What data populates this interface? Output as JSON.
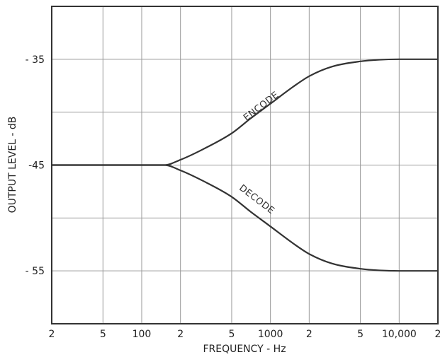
{
  "chart_data": {
    "type": "line",
    "xscale": "log",
    "xlim": [
      20,
      20000
    ],
    "ylim": [
      -60,
      -30
    ],
    "grid": true,
    "xlabel": "FREQUENCY - Hz",
    "ylabel": "OUTPUT LEVEL - dB",
    "x_ticks": [
      {
        "value": 20,
        "label": "2"
      },
      {
        "value": 50,
        "label": "5"
      },
      {
        "value": 100,
        "label": "100"
      },
      {
        "value": 200,
        "label": "2"
      },
      {
        "value": 500,
        "label": "5"
      },
      {
        "value": 1000,
        "label": "1000"
      },
      {
        "value": 2000,
        "label": "2"
      },
      {
        "value": 5000,
        "label": "5"
      },
      {
        "value": 10000,
        "label": "10,000"
      },
      {
        "value": 20000,
        "label": "2"
      }
    ],
    "y_ticks": [
      {
        "value": -35,
        "label": "- 35"
      },
      {
        "value": -45,
        "label": "-45"
      },
      {
        "value": -55,
        "label": "- 55"
      }
    ],
    "series": [
      {
        "name": "ENCODE",
        "x": [
          20,
          50,
          100,
          150,
          200,
          300,
          500,
          700,
          1000,
          1500,
          2000,
          3000,
          5000,
          7000,
          10000,
          20000
        ],
        "y": [
          -45,
          -45,
          -45,
          -45,
          -44.5,
          -43.5,
          -42,
          -40.6,
          -39.2,
          -37.6,
          -36.6,
          -35.7,
          -35.2,
          -35.05,
          -35,
          -35
        ]
      },
      {
        "name": "DECODE",
        "x": [
          20,
          50,
          100,
          150,
          200,
          300,
          500,
          700,
          1000,
          1500,
          2000,
          3000,
          5000,
          7000,
          10000,
          20000
        ],
        "y": [
          -45,
          -45,
          -45,
          -45,
          -45.5,
          -46.5,
          -48,
          -49.4,
          -50.8,
          -52.4,
          -53.4,
          -54.3,
          -54.8,
          -54.95,
          -55,
          -55
        ]
      }
    ]
  }
}
